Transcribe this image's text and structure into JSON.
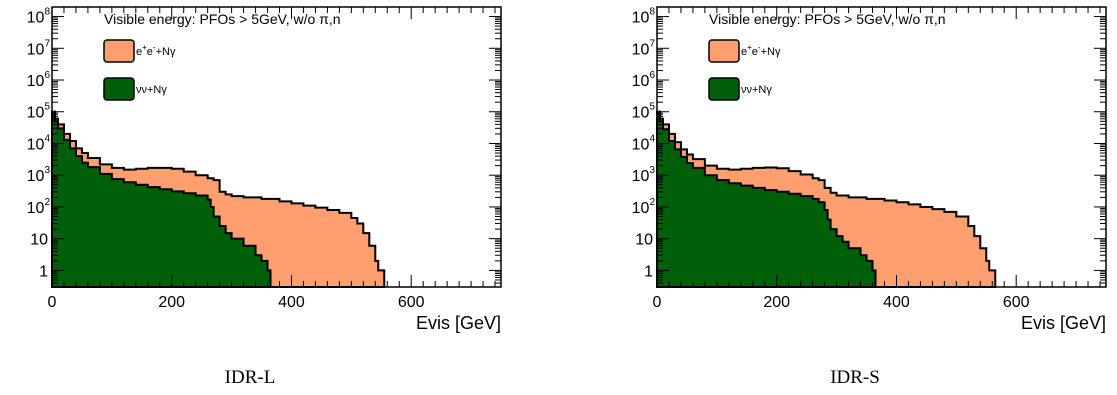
{
  "colors": {
    "ee_fill": "#ff9f6f",
    "nn_fill": "#00600a",
    "line": "#000000"
  },
  "chart_data": [
    {
      "type": "area",
      "caption": "IDR-L",
      "title": "Visible energy: PFOs > 5GeV, w/o π,n",
      "xlabel": "Evis [GeV]",
      "ylabel": "",
      "log_y": true,
      "xlim": [
        0,
        750
      ],
      "ylim": [
        0.3,
        200000000
      ],
      "x_ticks": [
        0,
        200,
        400,
        600
      ],
      "y_ticks": [
        {
          "value": 1,
          "mantissa": "1",
          "exp": ""
        },
        {
          "value": 10,
          "mantissa": "10",
          "exp": ""
        },
        {
          "value": 100,
          "mantissa": "10",
          "exp": "2"
        },
        {
          "value": 1000,
          "mantissa": "10",
          "exp": "3"
        },
        {
          "value": 10000,
          "mantissa": "10",
          "exp": "4"
        },
        {
          "value": 100000,
          "mantissa": "10",
          "exp": "5"
        },
        {
          "value": 1000000,
          "mantissa": "10",
          "exp": "6"
        },
        {
          "value": 10000000,
          "mantissa": "10",
          "exp": "7"
        },
        {
          "value": 100000000,
          "mantissa": "10",
          "exp": "8"
        }
      ],
      "legend_position": "top-left",
      "series": [
        {
          "name": "e+e-+Nγ",
          "legend_main": "e",
          "legend_sup1": "+",
          "legend_mid": "e",
          "legend_sup2": "-",
          "legend_rest": "+Nγ",
          "color": "#ff9f6f",
          "x": [
            0,
            5,
            10,
            20,
            30,
            40,
            50,
            60,
            80,
            100,
            120,
            140,
            160,
            180,
            200,
            220,
            240,
            260,
            270,
            280,
            290,
            300,
            320,
            350,
            380,
            400,
            420,
            440,
            460,
            480,
            500,
            510,
            520,
            530,
            540,
            545,
            550
          ],
          "values": [
            100000,
            60000,
            40000,
            20000,
            12000,
            7000,
            5000,
            3500,
            2200,
            1700,
            1500,
            1600,
            1700,
            1700,
            1600,
            1300,
            1000,
            800,
            700,
            300,
            250,
            220,
            200,
            180,
            150,
            130,
            110,
            95,
            80,
            65,
            45,
            30,
            15,
            6,
            2,
            1,
            1
          ]
        },
        {
          "name": "νν+Nγ",
          "legend_main": "νν+Nγ",
          "color": "#00600a",
          "x": [
            0,
            5,
            10,
            20,
            30,
            40,
            50,
            60,
            80,
            100,
            120,
            140,
            160,
            180,
            200,
            220,
            240,
            260,
            265,
            270,
            280,
            290,
            300,
            320,
            340,
            350,
            360
          ],
          "values": [
            100000,
            50000,
            30000,
            13000,
            7000,
            4000,
            2500,
            1800,
            1100,
            750,
            600,
            500,
            420,
            360,
            310,
            270,
            230,
            170,
            100,
            50,
            25,
            15,
            10,
            6,
            3,
            2,
            1
          ]
        }
      ]
    },
    {
      "type": "area",
      "caption": "IDR-S",
      "title": "Visible energy: PFOs > 5GeV, w/o π,n",
      "xlabel": "Evis [GeV]",
      "ylabel": "",
      "log_y": true,
      "xlim": [
        0,
        750
      ],
      "ylim": [
        0.3,
        200000000
      ],
      "x_ticks": [
        0,
        200,
        400,
        600
      ],
      "y_ticks": [
        {
          "value": 1,
          "mantissa": "1",
          "exp": ""
        },
        {
          "value": 10,
          "mantissa": "10",
          "exp": ""
        },
        {
          "value": 100,
          "mantissa": "10",
          "exp": "2"
        },
        {
          "value": 1000,
          "mantissa": "10",
          "exp": "3"
        },
        {
          "value": 10000,
          "mantissa": "10",
          "exp": "4"
        },
        {
          "value": 100000,
          "mantissa": "10",
          "exp": "5"
        },
        {
          "value": 1000000,
          "mantissa": "10",
          "exp": "6"
        },
        {
          "value": 10000000,
          "mantissa": "10",
          "exp": "7"
        },
        {
          "value": 100000000,
          "mantissa": "10",
          "exp": "8"
        }
      ],
      "legend_position": "top-left",
      "series": [
        {
          "name": "e+e-+Nγ",
          "legend_main": "e",
          "legend_sup1": "+",
          "legend_mid": "e",
          "legend_sup2": "-",
          "legend_rest": "+Nγ",
          "color": "#ff9f6f",
          "x": [
            0,
            5,
            10,
            20,
            30,
            40,
            50,
            60,
            80,
            100,
            120,
            140,
            160,
            180,
            200,
            220,
            240,
            260,
            270,
            280,
            290,
            300,
            320,
            350,
            380,
            400,
            420,
            440,
            460,
            480,
            500,
            520,
            530,
            540,
            550,
            555,
            560
          ],
          "values": [
            100000,
            60000,
            40000,
            20000,
            11000,
            6500,
            4500,
            3200,
            2000,
            1600,
            1500,
            1600,
            1700,
            1750,
            1650,
            1350,
            1050,
            800,
            700,
            400,
            280,
            230,
            200,
            180,
            160,
            140,
            120,
            100,
            85,
            70,
            50,
            25,
            12,
            5,
            2,
            1,
            1
          ]
        },
        {
          "name": "νν+Nγ",
          "legend_main": "νν+Nγ",
          "color": "#00600a",
          "x": [
            0,
            5,
            10,
            20,
            30,
            40,
            50,
            60,
            80,
            100,
            120,
            140,
            160,
            180,
            200,
            220,
            240,
            260,
            270,
            280,
            285,
            290,
            300,
            310,
            320,
            340,
            350,
            360
          ],
          "values": [
            100000,
            50000,
            28000,
            12000,
            6500,
            3800,
            2400,
            1700,
            1000,
            700,
            560,
            470,
            400,
            340,
            300,
            260,
            220,
            180,
            140,
            80,
            40,
            20,
            12,
            8,
            5,
            3,
            2,
            1
          ]
        }
      ]
    }
  ]
}
